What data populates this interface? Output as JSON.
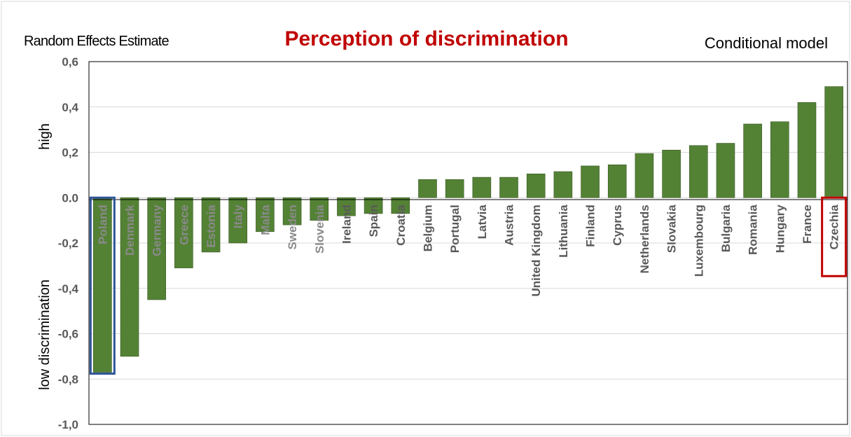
{
  "chart_data": {
    "type": "bar",
    "title": "Perception of discrimination",
    "subtitle_left": "Random Effects Estimate",
    "subtitle_right": "Conditional model",
    "ylabel_top": "high",
    "ylabel_bottom": "low discrimination",
    "ylim": [
      -1.0,
      0.6
    ],
    "yticks": [
      0.6,
      0.4,
      0.2,
      0.0,
      -0.2,
      -0.4,
      -0.6,
      -0.8,
      -1.0
    ],
    "ytick_labels": [
      "0,6",
      "0,4",
      "0,2",
      "0.0",
      "-0,2",
      "-0,4",
      "-0,6",
      "-0,8",
      "-1,0"
    ],
    "grid": true,
    "categories": [
      "Poland",
      "Denmark",
      "Germany",
      "Greece",
      "Estonia",
      "Italy",
      "Malta",
      "Sweden",
      "Slovenia",
      "Ireland",
      "Spain",
      "Croatia",
      "Belgium",
      "Portugal",
      "Latvia",
      "Austria",
      "United Kingdom",
      "Lithuania",
      "Finland",
      "Cyprus",
      "Netherlands",
      "Slovakia",
      "Luxembourg",
      "Bulgaria",
      "Romania",
      "Hungary",
      "France",
      "Czechia"
    ],
    "values": [
      -0.77,
      -0.7,
      -0.45,
      -0.31,
      -0.24,
      -0.2,
      -0.15,
      -0.12,
      -0.1,
      -0.08,
      -0.07,
      -0.07,
      0.08,
      0.08,
      0.09,
      0.09,
      0.105,
      0.115,
      0.14,
      0.145,
      0.195,
      0.21,
      0.23,
      0.24,
      0.325,
      0.335,
      0.42,
      0.49
    ],
    "highlights": [
      {
        "category": "Poland",
        "color": "#2F5597"
      },
      {
        "category": "Czechia",
        "color": "#C00000"
      }
    ],
    "colors": {
      "bar": "#548235",
      "bar_edge": "#385723",
      "title": "#C00000",
      "label_dark": "#595959",
      "label_on_bar": "#8A8A8A",
      "grid": "#D9D9D9",
      "axis": "#000000"
    }
  }
}
